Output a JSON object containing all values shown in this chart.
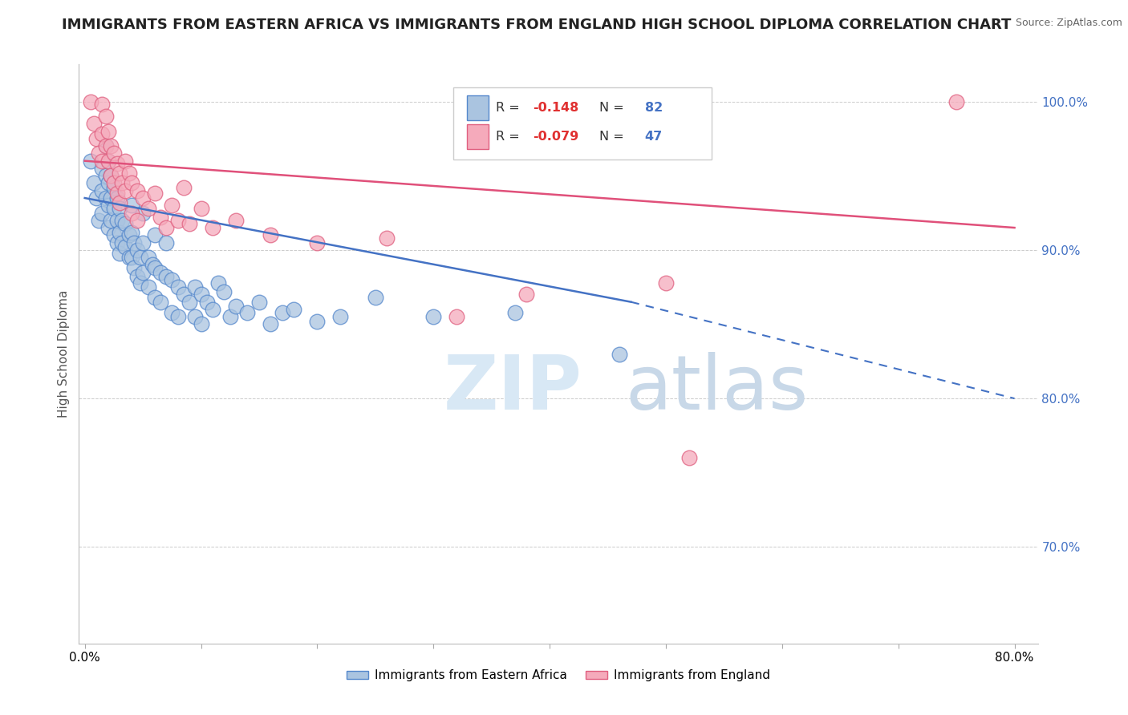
{
  "title": "IMMIGRANTS FROM EASTERN AFRICA VS IMMIGRANTS FROM ENGLAND HIGH SCHOOL DIPLOMA CORRELATION CHART",
  "source": "Source: ZipAtlas.com",
  "ylabel": "High School Diploma",
  "watermark_zip": "ZIP",
  "watermark_atlas": "atlas",
  "xlim": [
    -0.005,
    0.82
  ],
  "ylim": [
    0.635,
    1.025
  ],
  "yticks": [
    0.7,
    0.8,
    0.9,
    1.0
  ],
  "ytick_labels": [
    "70.0%",
    "80.0%",
    "90.0%",
    "100.0%"
  ],
  "xticks": [
    0.0,
    0.1,
    0.2,
    0.3,
    0.4,
    0.5,
    0.6,
    0.7,
    0.8
  ],
  "xtick_labels": [
    "0.0%",
    "",
    "",
    "",
    "",
    "",
    "",
    "",
    "80.0%"
  ],
  "blue_color": "#aac4e0",
  "pink_color": "#f5aabb",
  "blue_edge_color": "#5588cc",
  "pink_edge_color": "#e06080",
  "blue_line_color": "#4472c4",
  "pink_line_color": "#e0507a",
  "legend_R_color": "#e03030",
  "legend_N_color": "#4472c4",
  "blue_scatter": [
    [
      0.005,
      0.96
    ],
    [
      0.008,
      0.945
    ],
    [
      0.01,
      0.935
    ],
    [
      0.012,
      0.92
    ],
    [
      0.015,
      0.955
    ],
    [
      0.015,
      0.94
    ],
    [
      0.015,
      0.925
    ],
    [
      0.018,
      0.97
    ],
    [
      0.018,
      0.95
    ],
    [
      0.018,
      0.935
    ],
    [
      0.02,
      0.96
    ],
    [
      0.02,
      0.945
    ],
    [
      0.02,
      0.93
    ],
    [
      0.02,
      0.915
    ],
    [
      0.022,
      0.95
    ],
    [
      0.022,
      0.935
    ],
    [
      0.022,
      0.92
    ],
    [
      0.025,
      0.942
    ],
    [
      0.025,
      0.928
    ],
    [
      0.025,
      0.91
    ],
    [
      0.028,
      0.935
    ],
    [
      0.028,
      0.92
    ],
    [
      0.028,
      0.905
    ],
    [
      0.03,
      0.928
    ],
    [
      0.03,
      0.912
    ],
    [
      0.03,
      0.898
    ],
    [
      0.032,
      0.92
    ],
    [
      0.032,
      0.905
    ],
    [
      0.035,
      0.918
    ],
    [
      0.035,
      0.902
    ],
    [
      0.038,
      0.91
    ],
    [
      0.038,
      0.895
    ],
    [
      0.04,
      0.93
    ],
    [
      0.04,
      0.912
    ],
    [
      0.04,
      0.895
    ],
    [
      0.042,
      0.905
    ],
    [
      0.042,
      0.888
    ],
    [
      0.045,
      0.9
    ],
    [
      0.045,
      0.882
    ],
    [
      0.048,
      0.895
    ],
    [
      0.048,
      0.878
    ],
    [
      0.05,
      0.925
    ],
    [
      0.05,
      0.905
    ],
    [
      0.05,
      0.885
    ],
    [
      0.055,
      0.895
    ],
    [
      0.055,
      0.875
    ],
    [
      0.058,
      0.89
    ],
    [
      0.06,
      0.91
    ],
    [
      0.06,
      0.888
    ],
    [
      0.06,
      0.868
    ],
    [
      0.065,
      0.885
    ],
    [
      0.065,
      0.865
    ],
    [
      0.07,
      0.905
    ],
    [
      0.07,
      0.882
    ],
    [
      0.075,
      0.88
    ],
    [
      0.075,
      0.858
    ],
    [
      0.08,
      0.875
    ],
    [
      0.08,
      0.855
    ],
    [
      0.085,
      0.87
    ],
    [
      0.09,
      0.865
    ],
    [
      0.095,
      0.875
    ],
    [
      0.095,
      0.855
    ],
    [
      0.1,
      0.87
    ],
    [
      0.1,
      0.85
    ],
    [
      0.105,
      0.865
    ],
    [
      0.11,
      0.86
    ],
    [
      0.115,
      0.878
    ],
    [
      0.12,
      0.872
    ],
    [
      0.125,
      0.855
    ],
    [
      0.13,
      0.862
    ],
    [
      0.14,
      0.858
    ],
    [
      0.15,
      0.865
    ],
    [
      0.16,
      0.85
    ],
    [
      0.17,
      0.858
    ],
    [
      0.18,
      0.86
    ],
    [
      0.2,
      0.852
    ],
    [
      0.22,
      0.855
    ],
    [
      0.25,
      0.868
    ],
    [
      0.3,
      0.855
    ],
    [
      0.37,
      0.858
    ],
    [
      0.46,
      0.83
    ]
  ],
  "pink_scatter": [
    [
      0.005,
      1.0
    ],
    [
      0.008,
      0.985
    ],
    [
      0.01,
      0.975
    ],
    [
      0.012,
      0.965
    ],
    [
      0.015,
      0.998
    ],
    [
      0.015,
      0.978
    ],
    [
      0.015,
      0.96
    ],
    [
      0.018,
      0.99
    ],
    [
      0.018,
      0.97
    ],
    [
      0.02,
      0.98
    ],
    [
      0.02,
      0.96
    ],
    [
      0.022,
      0.97
    ],
    [
      0.022,
      0.95
    ],
    [
      0.025,
      0.965
    ],
    [
      0.025,
      0.945
    ],
    [
      0.028,
      0.958
    ],
    [
      0.028,
      0.938
    ],
    [
      0.03,
      0.952
    ],
    [
      0.03,
      0.932
    ],
    [
      0.032,
      0.945
    ],
    [
      0.035,
      0.96
    ],
    [
      0.035,
      0.94
    ],
    [
      0.038,
      0.952
    ],
    [
      0.04,
      0.945
    ],
    [
      0.04,
      0.925
    ],
    [
      0.045,
      0.94
    ],
    [
      0.045,
      0.92
    ],
    [
      0.05,
      0.935
    ],
    [
      0.055,
      0.928
    ],
    [
      0.06,
      0.938
    ],
    [
      0.065,
      0.922
    ],
    [
      0.07,
      0.915
    ],
    [
      0.075,
      0.93
    ],
    [
      0.08,
      0.92
    ],
    [
      0.085,
      0.942
    ],
    [
      0.09,
      0.918
    ],
    [
      0.1,
      0.928
    ],
    [
      0.11,
      0.915
    ],
    [
      0.13,
      0.92
    ],
    [
      0.16,
      0.91
    ],
    [
      0.2,
      0.905
    ],
    [
      0.26,
      0.908
    ],
    [
      0.32,
      0.855
    ],
    [
      0.38,
      0.87
    ],
    [
      0.5,
      0.878
    ],
    [
      0.52,
      0.76
    ],
    [
      0.75,
      1.0
    ]
  ],
  "blue_trend": {
    "x": [
      0.0,
      0.47
    ],
    "y": [
      0.935,
      0.865
    ]
  },
  "blue_dashed": {
    "x": [
      0.47,
      0.8
    ],
    "y": [
      0.865,
      0.8
    ]
  },
  "pink_trend": {
    "x": [
      0.0,
      0.8
    ],
    "y": [
      0.96,
      0.915
    ]
  },
  "bottom_legend_blue": "Immigrants from Eastern Africa",
  "bottom_legend_pink": "Immigrants from England",
  "title_fontsize": 13,
  "axis_label_fontsize": 11,
  "tick_fontsize": 11,
  "background_color": "#ffffff",
  "grid_color": "#cccccc"
}
